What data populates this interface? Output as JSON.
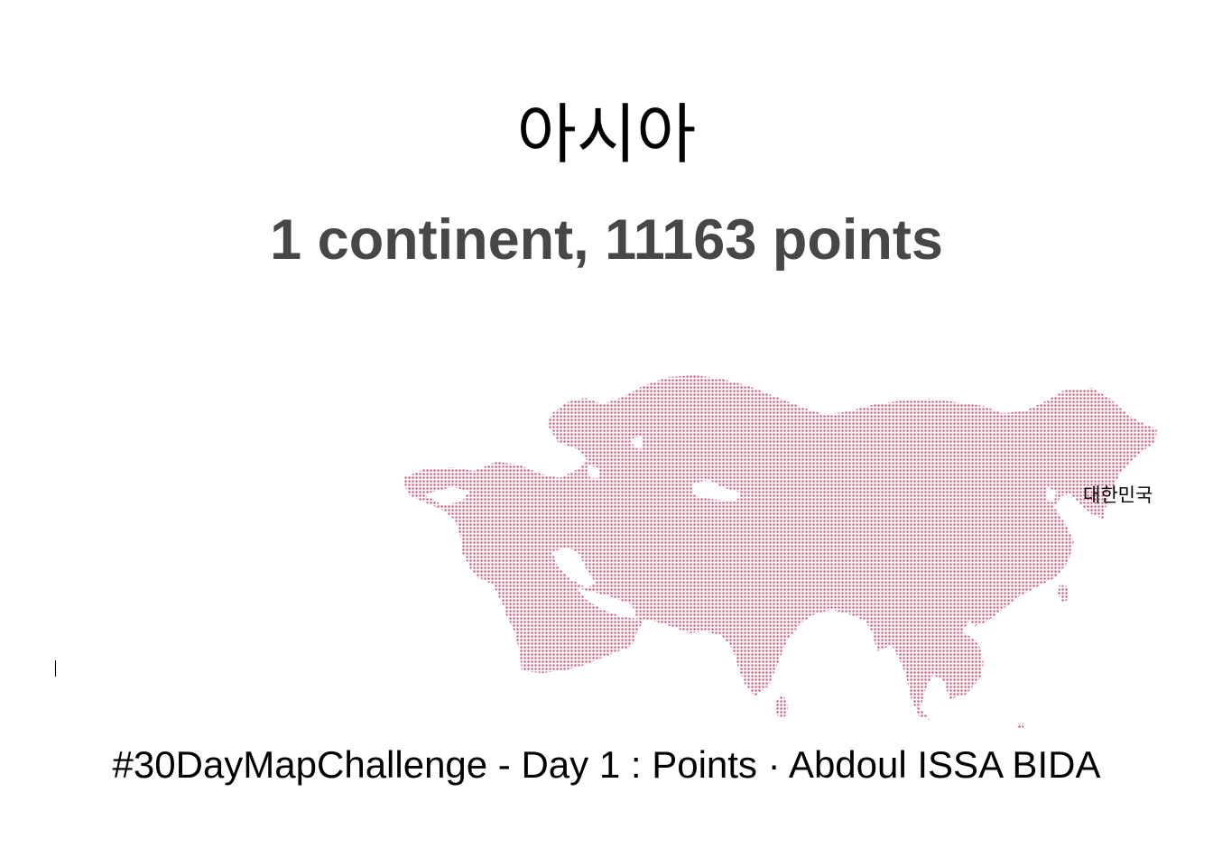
{
  "title": "아시아",
  "subtitle": "1 continent, 11163 points",
  "map": {
    "region": "Asia",
    "point_color": "#c8385e",
    "highlighted_country_label": "대한민국"
  },
  "caption": "#30DayMapChallenge - Day 1 : Points · Abdoul ISSA BIDA"
}
